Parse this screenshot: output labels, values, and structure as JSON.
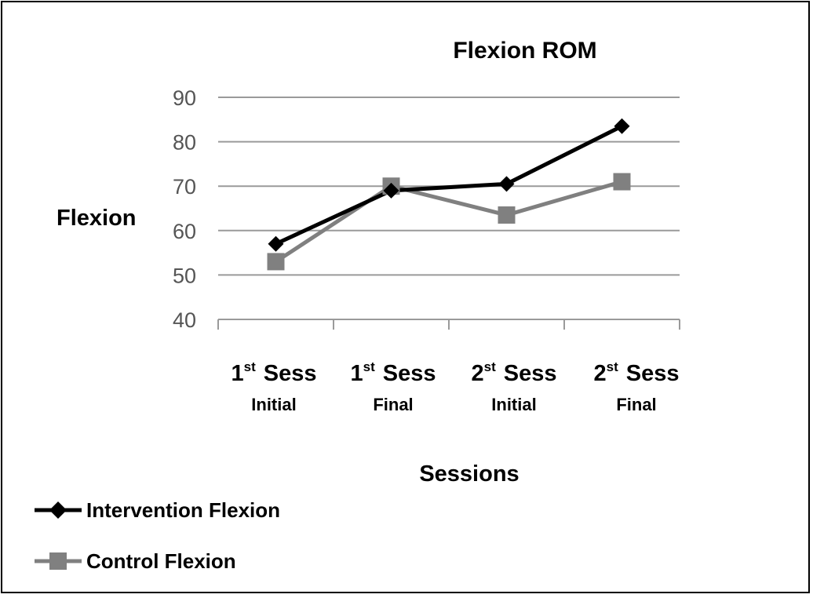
{
  "chart_data": {
    "type": "line",
    "title": "Flexion ROM",
    "xlabel": "Sessions",
    "ylabel": "Flexion",
    "categories": [
      {
        "top": "1",
        "sup": "st",
        "rest": " Sess",
        "bottom": "Initial"
      },
      {
        "top": "1",
        "sup": "st",
        "rest": " Sess",
        "bottom": "Final"
      },
      {
        "top": "2",
        "sup": "st",
        "rest": " Sess",
        "bottom": "Initial"
      },
      {
        "top": "2",
        "sup": "st",
        "rest": " Sess",
        "bottom": "Final"
      }
    ],
    "ylim": [
      40,
      90
    ],
    "yticks": [
      "90",
      "80",
      "70",
      "60",
      "50",
      "40"
    ],
    "grid": true,
    "legend_position": "bottom-left",
    "series": [
      {
        "name": "Intervention Flexion",
        "values": [
          57,
          69,
          70.5,
          83.5
        ],
        "color": "#000000",
        "marker": "diamond"
      },
      {
        "name": "Control Flexion",
        "values": [
          53,
          70,
          63.5,
          71
        ],
        "color": "#808080",
        "marker": "square"
      }
    ]
  }
}
